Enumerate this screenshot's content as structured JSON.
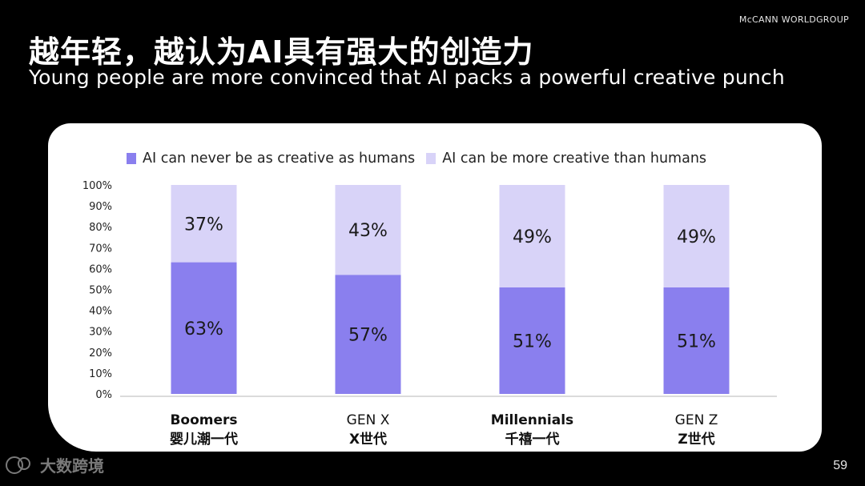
{
  "header": {
    "brand": "McCANN WORLDGROUP",
    "title_cn": "越年轻，越认为AI具有强大的创造力",
    "title_en": "Young people are more convinced that AI packs a powerful creative punch"
  },
  "footer": {
    "page_number": "59",
    "watermark": "大数跨境"
  },
  "colors": {
    "never": "#8a7fee",
    "more": "#d8d3f8",
    "axis": "#cfcfcf"
  },
  "chart_data": {
    "type": "bar",
    "stacked": true,
    "categories": [
      {
        "en": "Boomers",
        "cn": "婴儿潮一代",
        "bold": true
      },
      {
        "en": "GEN X",
        "cn": "X世代",
        "bold": false
      },
      {
        "en": "Millennials",
        "cn": "千禧一代",
        "bold": true
      },
      {
        "en": "GEN Z",
        "cn": "Z世代",
        "bold": false
      }
    ],
    "series": [
      {
        "name": "AI can never be as creative as humans",
        "values": [
          63,
          57,
          51,
          51
        ],
        "labels": [
          "63%",
          "57%",
          "51%",
          "51%"
        ]
      },
      {
        "name": "AI can be more creative than humans",
        "values": [
          37,
          43,
          49,
          49
        ],
        "labels": [
          "37%",
          "43%",
          "49%",
          "49%"
        ]
      }
    ],
    "ylim": [
      0,
      100
    ],
    "yticks": [
      "0%",
      "10%",
      "20%",
      "30%",
      "40%",
      "50%",
      "60%",
      "70%",
      "80%",
      "90%",
      "100%"
    ],
    "legend_position": "top"
  }
}
